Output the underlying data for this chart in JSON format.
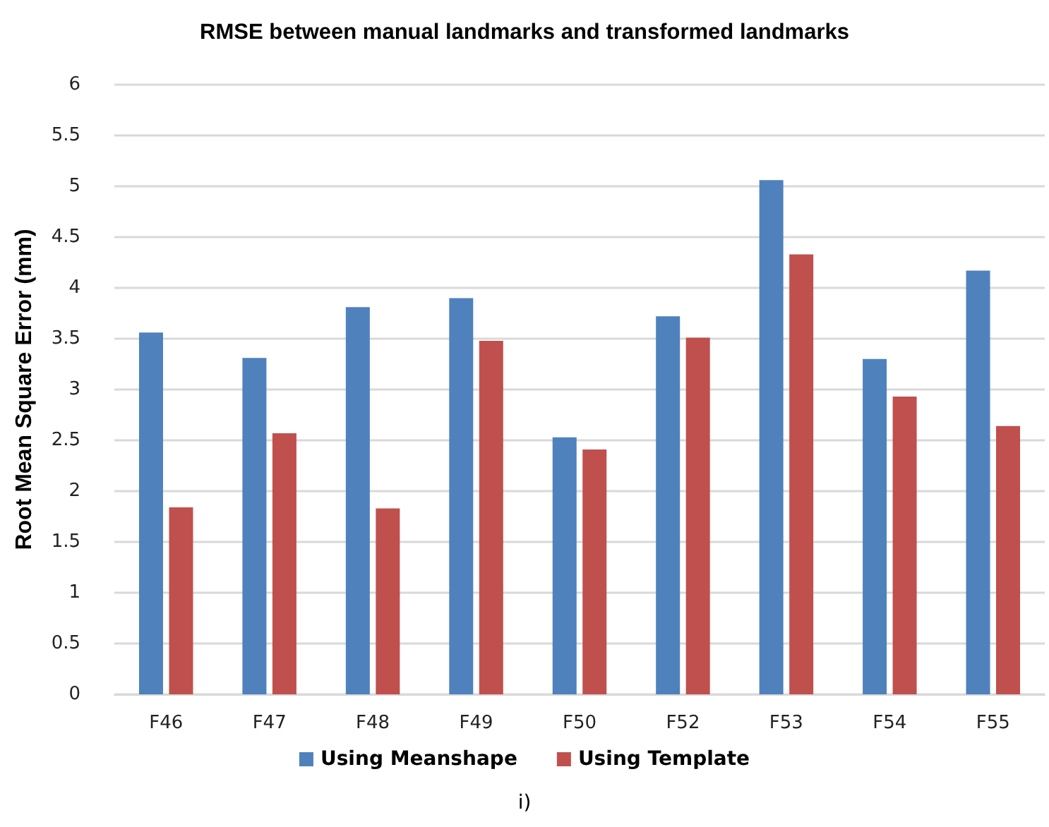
{
  "chart_data": {
    "type": "bar",
    "title": "RMSE between manual landmarks and transformed landmarks",
    "ylabel": "Root Mean Square Error (mm)",
    "categories": [
      "F46",
      "F47",
      "F48",
      "F49",
      "F50",
      "F52",
      "F53",
      "F54",
      "F55"
    ],
    "series": [
      {
        "name": "Using Meanshape",
        "color": "#4f81bd",
        "values": [
          3.56,
          3.31,
          3.81,
          3.9,
          2.53,
          3.72,
          5.06,
          3.3,
          4.17
        ]
      },
      {
        "name": "Using Template",
        "color": "#c0504d",
        "values": [
          1.84,
          2.57,
          1.83,
          3.48,
          2.41,
          3.51,
          4.33,
          2.93,
          2.64
        ]
      }
    ],
    "ylim": [
      0,
      6
    ],
    "yticks": [
      0,
      0.5,
      1,
      1.5,
      2,
      2.5,
      3,
      3.5,
      4,
      4.5,
      5,
      5.5,
      6
    ],
    "grid": "y",
    "legend": "bottom",
    "annotations": [
      "i)"
    ]
  }
}
